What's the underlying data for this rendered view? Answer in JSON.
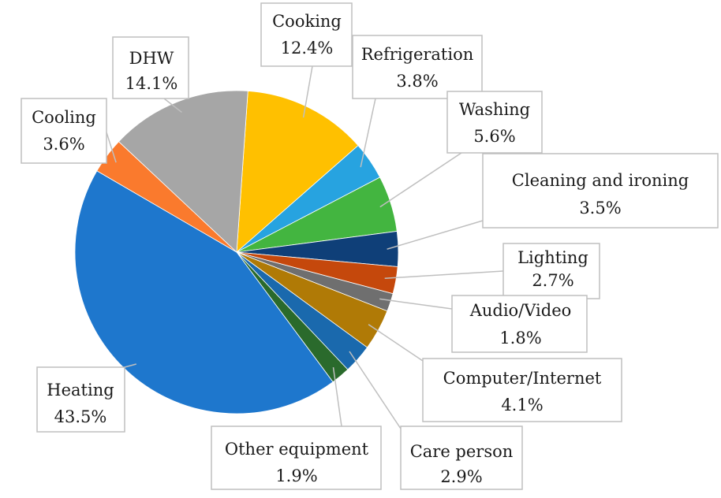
{
  "chart_data": {
    "type": "pie",
    "title": "",
    "slices": [
      {
        "name": "Cooking",
        "value": 12.4,
        "label": "12.4%",
        "color": "#ffc000"
      },
      {
        "name": "Refrigeration",
        "value": 3.8,
        "label": "3.8%",
        "color": "#27a3e0"
      },
      {
        "name": "Washing",
        "value": 5.6,
        "label": "5.6%",
        "color": "#43b540"
      },
      {
        "name": "Cleaning and ironing",
        "value": 3.5,
        "label": "3.5%",
        "color": "#0f3f78"
      },
      {
        "name": "Lighting",
        "value": 2.7,
        "label": "2.7%",
        "color": "#c5480c"
      },
      {
        "name": "Audio/Video",
        "value": 1.8,
        "label": "1.8%",
        "color": "#6f6f6f"
      },
      {
        "name": "Computer/Internet",
        "value": 4.1,
        "label": "4.1%",
        "color": "#b07a06"
      },
      {
        "name": "Care person",
        "value": 2.9,
        "label": "2.9%",
        "color": "#1a69ad"
      },
      {
        "name": "Other equipment",
        "value": 1.9,
        "label": "1.9%",
        "color": "#2a6a2c"
      },
      {
        "name": "Heating",
        "value": 43.5,
        "label": "43.5%",
        "color": "#1e77cd"
      },
      {
        "name": "Cooling",
        "value": 3.6,
        "label": "3.6%",
        "color": "#fa7a2d"
      },
      {
        "name": "DHW",
        "value": 14.1,
        "label": "14.1%",
        "color": "#a6a6a6"
      }
    ]
  }
}
